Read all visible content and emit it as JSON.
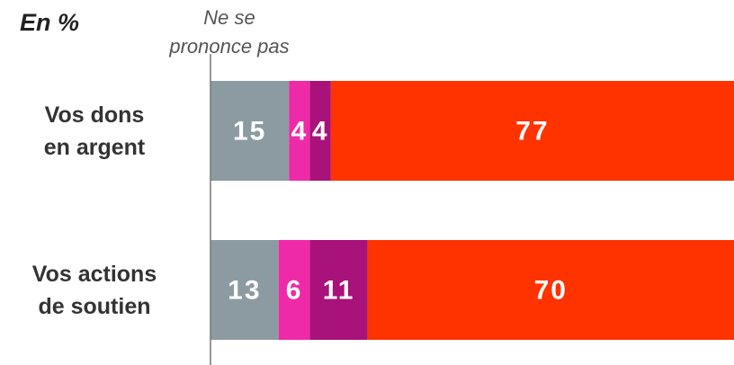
{
  "chart_data": {
    "type": "stacked-bar-horizontal",
    "title": "En %",
    "categories": [
      "Vos dons\nen argent",
      "Vos actions\nde soutien"
    ],
    "series": [
      {
        "name": "Ne se\nprononce pas",
        "color": "#8c9ba1",
        "values": [
          15,
          13
        ]
      },
      {
        "color": "#ee2aa8",
        "values": [
          4,
          6
        ]
      },
      {
        "color": "#a8127a",
        "values": [
          4,
          11
        ]
      },
      {
        "color": "#ff3300",
        "values": [
          77,
          70
        ]
      }
    ],
    "xlim": [
      0,
      100
    ]
  }
}
